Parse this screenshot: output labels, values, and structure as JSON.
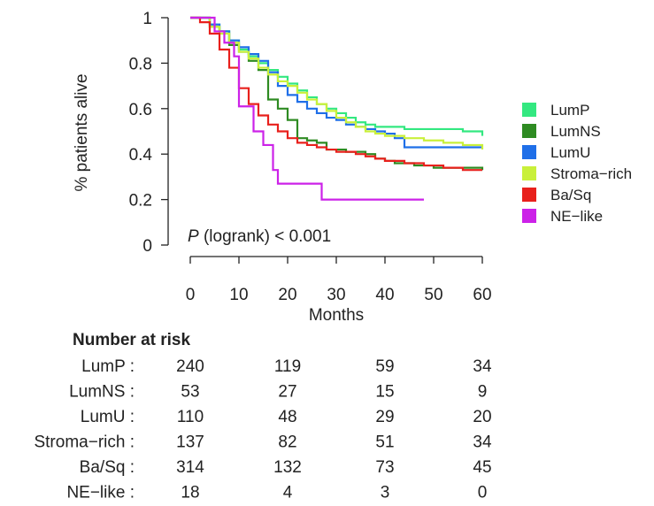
{
  "chart_data": {
    "type": "line",
    "title": "",
    "xlabel": "Months",
    "ylabel": "% patients alive",
    "xlim": [
      0,
      60
    ],
    "ylim": [
      0,
      1
    ],
    "xticks": [
      0,
      10,
      20,
      30,
      40,
      50,
      60
    ],
    "yticks": [
      0,
      0.2,
      0.4,
      0.6,
      0.8,
      1
    ],
    "ytick_labels": [
      "0",
      "0.2",
      "0.4",
      "0.6",
      "0.8",
      "1"
    ],
    "grid": false,
    "legend_position": "right",
    "annotation": {
      "p_italic": "P",
      "rest": "(logrank) < 0.001"
    },
    "series": [
      {
        "name": "LumP",
        "color": "#33e880",
        "x": [
          0,
          4,
          6,
          8,
          10,
          12,
          14,
          16,
          18,
          20,
          22,
          24,
          26,
          28,
          30,
          32,
          34,
          36,
          38,
          40,
          44,
          48,
          52,
          56,
          60
        ],
        "y": [
          1.0,
          0.97,
          0.94,
          0.9,
          0.86,
          0.83,
          0.8,
          0.77,
          0.74,
          0.71,
          0.68,
          0.65,
          0.62,
          0.6,
          0.58,
          0.56,
          0.54,
          0.53,
          0.52,
          0.52,
          0.51,
          0.51,
          0.51,
          0.5,
          0.48
        ]
      },
      {
        "name": "LumNS",
        "color": "#2e8b22",
        "x": [
          0,
          4,
          6,
          8,
          10,
          12,
          14,
          16,
          18,
          20,
          22,
          24,
          26,
          28,
          30,
          32,
          34,
          36,
          38,
          40,
          42,
          44,
          46,
          48,
          50,
          54,
          60
        ],
        "y": [
          1.0,
          0.96,
          0.94,
          0.88,
          0.85,
          0.81,
          0.77,
          0.64,
          0.6,
          0.55,
          0.47,
          0.46,
          0.45,
          0.42,
          0.42,
          0.41,
          0.41,
          0.4,
          0.38,
          0.37,
          0.36,
          0.36,
          0.35,
          0.35,
          0.34,
          0.34,
          0.33
        ]
      },
      {
        "name": "LumU",
        "color": "#1f6fe8",
        "x": [
          0,
          4,
          6,
          8,
          10,
          12,
          14,
          16,
          18,
          20,
          22,
          24,
          26,
          28,
          30,
          32,
          34,
          36,
          38,
          40,
          42,
          44,
          50,
          60
        ],
        "y": [
          1.0,
          0.97,
          0.94,
          0.9,
          0.87,
          0.84,
          0.81,
          0.76,
          0.7,
          0.66,
          0.63,
          0.6,
          0.58,
          0.56,
          0.55,
          0.53,
          0.52,
          0.51,
          0.5,
          0.49,
          0.47,
          0.43,
          0.43,
          0.43
        ]
      },
      {
        "name": "Stroma−rich",
        "color": "#c9f03a",
        "x": [
          0,
          4,
          6,
          8,
          10,
          12,
          14,
          16,
          18,
          20,
          22,
          24,
          26,
          28,
          30,
          32,
          34,
          36,
          38,
          40,
          44,
          48,
          52,
          56,
          60
        ],
        "y": [
          1.0,
          0.96,
          0.93,
          0.89,
          0.85,
          0.82,
          0.78,
          0.75,
          0.72,
          0.7,
          0.67,
          0.64,
          0.62,
          0.59,
          0.56,
          0.54,
          0.52,
          0.5,
          0.49,
          0.48,
          0.47,
          0.46,
          0.45,
          0.44,
          0.42
        ]
      },
      {
        "name": "Ba/Sq",
        "color": "#e8201c",
        "x": [
          0,
          2,
          4,
          6,
          8,
          10,
          12,
          14,
          16,
          18,
          20,
          22,
          24,
          26,
          28,
          30,
          32,
          34,
          36,
          38,
          40,
          44,
          48,
          52,
          56,
          60
        ],
        "y": [
          1.0,
          0.98,
          0.93,
          0.86,
          0.78,
          0.69,
          0.62,
          0.57,
          0.53,
          0.5,
          0.47,
          0.45,
          0.44,
          0.43,
          0.42,
          0.41,
          0.41,
          0.4,
          0.39,
          0.38,
          0.37,
          0.36,
          0.35,
          0.34,
          0.33,
          0.33
        ]
      },
      {
        "name": "NE−like",
        "color": "#cc22e8",
        "x": [
          0,
          3,
          5,
          7,
          9,
          10,
          13,
          15,
          17,
          18,
          20,
          22,
          24,
          27,
          30,
          35,
          40,
          45,
          48
        ],
        "y": [
          1.0,
          1.0,
          0.94,
          0.89,
          0.83,
          0.61,
          0.5,
          0.44,
          0.33,
          0.27,
          0.27,
          0.27,
          0.27,
          0.2,
          0.2,
          0.2,
          0.2,
          0.2,
          0.2
        ]
      }
    ],
    "risk_table": {
      "title": "Number at risk",
      "time_points": [
        0,
        20,
        40,
        60
      ],
      "rows": [
        {
          "label": "LumP :",
          "values": [
            "240",
            "119",
            "59",
            "34"
          ]
        },
        {
          "label": "LumNS :",
          "values": [
            "53",
            "27",
            "15",
            "9"
          ]
        },
        {
          "label": "LumU :",
          "values": [
            "110",
            "48",
            "29",
            "20"
          ]
        },
        {
          "label": "Stroma−rich :",
          "values": [
            "137",
            "82",
            "51",
            "34"
          ]
        },
        {
          "label": "Ba/Sq :",
          "values": [
            "314",
            "132",
            "73",
            "45"
          ]
        },
        {
          "label": "NE−like :",
          "values": [
            "18",
            "4",
            "3",
            "0"
          ]
        }
      ]
    }
  }
}
